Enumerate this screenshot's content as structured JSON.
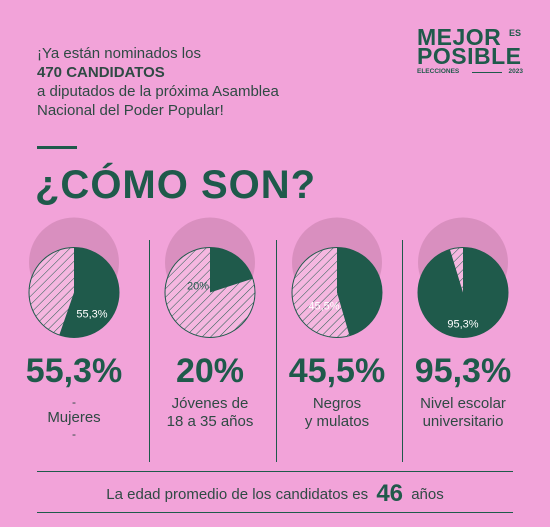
{
  "intro": {
    "line1": "¡Ya están nominados los",
    "line2": "470 CANDIDATOS",
    "line3": "a diputados de la próxima Asamblea",
    "line4": "Nacional del Poder Popular!"
  },
  "logo": {
    "line1": "MEJOR",
    "es": "ES",
    "line2": "POSIBLE",
    "elections": "ELECCIONES",
    "year": "2023"
  },
  "title": "¿CÓMO SON?",
  "stats": [
    {
      "pie_label": "55,3%",
      "fraction": 0.553,
      "value": "55,3%",
      "label_lines": [
        "-",
        "Mujeres",
        "-"
      ]
    },
    {
      "pie_label": "20%",
      "fraction": 0.2,
      "value": "20%",
      "label_lines": [
        "Jóvenes de",
        "18 a 35 años"
      ]
    },
    {
      "pie_label": "45,5%",
      "fraction": 0.455,
      "value": "45,5%",
      "label_lines": [
        "Negros",
        "y mulatos"
      ]
    },
    {
      "pie_label": "95,3%",
      "fraction": 0.953,
      "value": "95,3%",
      "label_lines": [
        "Nivel escolar",
        "universitario"
      ]
    }
  ],
  "footer": {
    "text_before": "La edad promedio de los candidatos es",
    "number": "46",
    "text_after": "años"
  },
  "colors": {
    "background": "#f2a3d9",
    "accent": "#1f5a4b",
    "text": "#2f4a44"
  }
}
